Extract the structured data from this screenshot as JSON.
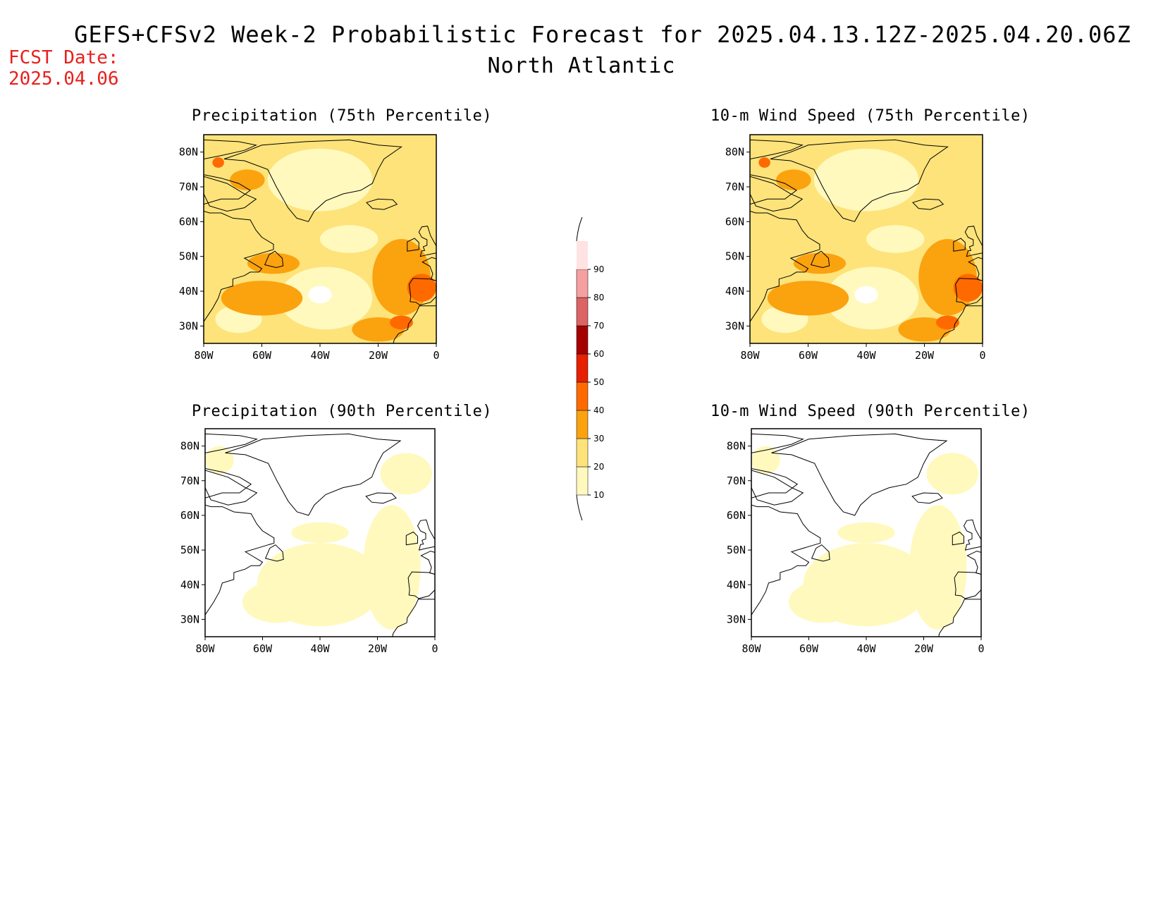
{
  "header": {
    "title": "GEFS+CFSv2 Week-2 Probabilistic Forecast for 2025.04.13.12Z-2025.04.20.06Z",
    "subtitle": "North Atlantic",
    "fcst_label": "FCST Date:",
    "fcst_date": "2025.04.06"
  },
  "panels": [
    {
      "title": "Precipitation (75th Percentile)",
      "intensity": "high"
    },
    {
      "title": "10-m Wind Speed (75th Percentile)",
      "intensity": "high"
    },
    {
      "title": "Precipitation (90th Percentile)",
      "intensity": "low"
    },
    {
      "title": "10-m Wind Speed (90th Percentile)",
      "intensity": "low"
    }
  ],
  "axes": {
    "lat_labels": [
      "80N",
      "70N",
      "60N",
      "50N",
      "40N",
      "30N"
    ],
    "lon_labels": [
      "80W",
      "60W",
      "40W",
      "20W",
      "0"
    ],
    "lat_range": [
      25,
      85
    ],
    "lon_range": [
      -80,
      0
    ]
  },
  "colorbar": {
    "levels": [
      "10",
      "20",
      "30",
      "40",
      "50",
      "60",
      "70",
      "80",
      "90"
    ],
    "colors": [
      "#fff9be",
      "#fde37a",
      "#fba20f",
      "#ff6a00",
      "#e62100",
      "#a50000",
      "#dc6464",
      "#f5a0a0",
      "#ffe2e2"
    ]
  }
}
